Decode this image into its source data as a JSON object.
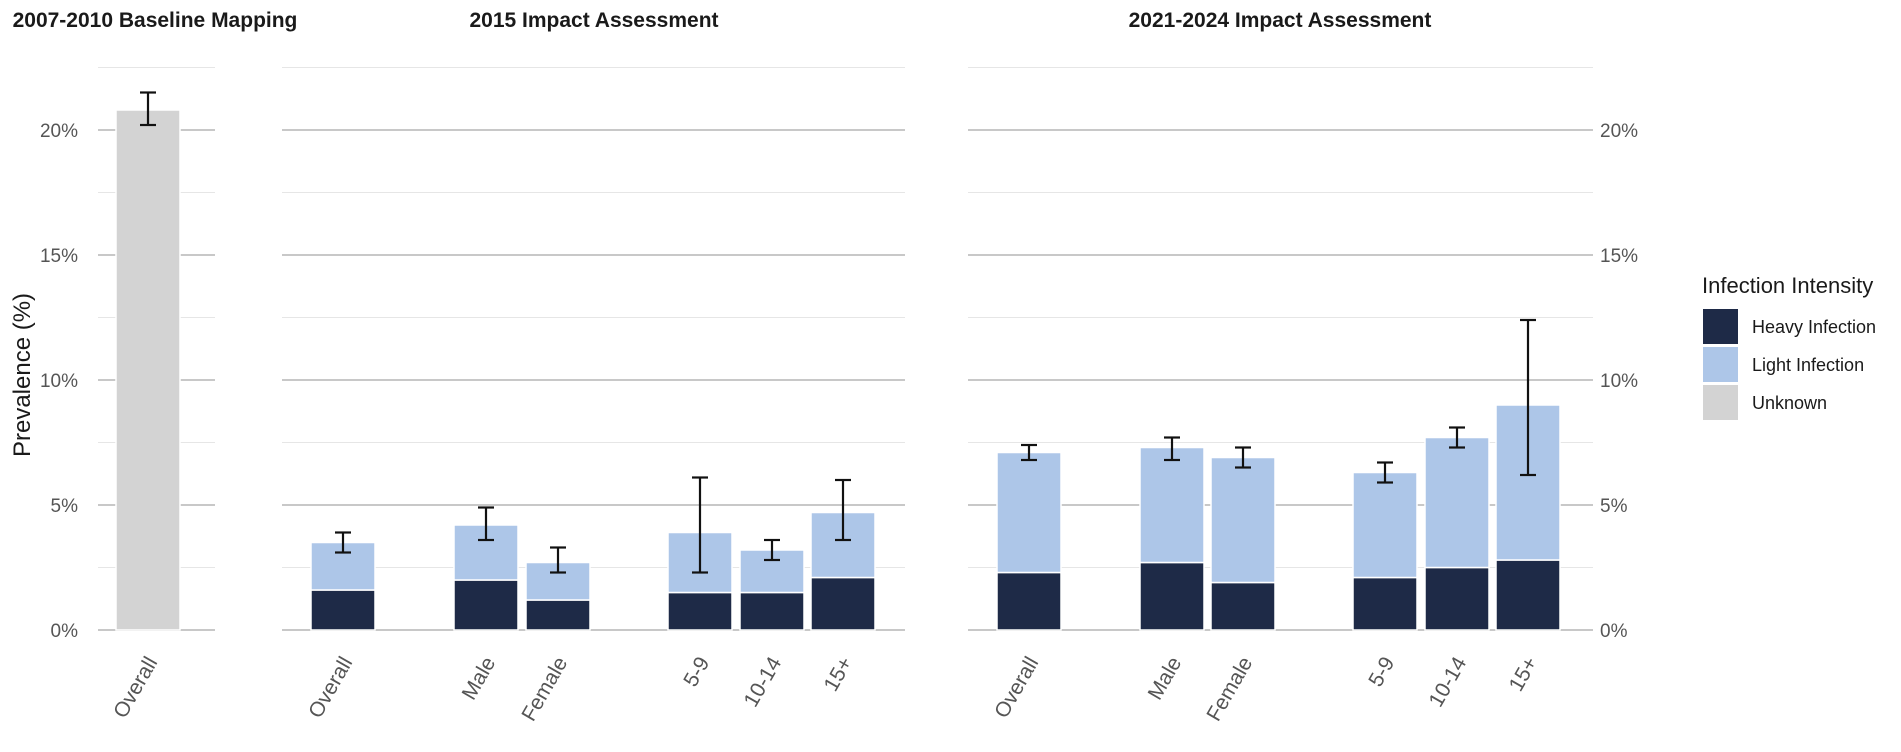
{
  "chart_data": {
    "type": "bar",
    "stacked": true,
    "ylabel": "Prevalence (%)",
    "ylim": [
      0,
      22.5
    ],
    "yticks": [
      0,
      5,
      10,
      15,
      20
    ],
    "ytick_labels": [
      "0%",
      "5%",
      "10%",
      "15%",
      "20%"
    ],
    "grid": true,
    "legend": {
      "title": "Infection Intensity",
      "position": "right",
      "entries": [
        {
          "name": "Heavy Infection",
          "color": "#1e2a47"
        },
        {
          "name": "Light Infection",
          "color": "#adc6e8"
        },
        {
          "name": "Unknown",
          "color": "#d3d3d3"
        }
      ]
    },
    "colors": {
      "heavy": "#1e2a47",
      "light": "#adc6e8",
      "unknown": "#d3d3d3",
      "error_bar": "#111111",
      "grid": "#c8c8c8"
    },
    "panels": [
      {
        "title": "2007-2010 Baseline Mapping",
        "bars": [
          {
            "category": "Overall",
            "unknown": 20.8,
            "ci": [
              20.2,
              21.5
            ]
          }
        ]
      },
      {
        "title": "2015 Impact Assessment",
        "bars": [
          {
            "category": "Overall",
            "heavy": 1.6,
            "light": 1.9,
            "ci": [
              3.1,
              3.9
            ]
          },
          {
            "category": "Male",
            "heavy": 2.0,
            "light": 2.2,
            "ci": [
              3.6,
              4.9
            ]
          },
          {
            "category": "Female",
            "heavy": 1.2,
            "light": 1.5,
            "ci": [
              2.3,
              3.3
            ]
          },
          {
            "category": "5-9",
            "heavy": 1.5,
            "light": 2.4,
            "ci": [
              2.3,
              6.1
            ]
          },
          {
            "category": "10-14",
            "heavy": 1.5,
            "light": 1.7,
            "ci": [
              2.8,
              3.6
            ]
          },
          {
            "category": "15+",
            "heavy": 2.1,
            "light": 2.6,
            "ci": [
              3.6,
              6.0
            ]
          }
        ]
      },
      {
        "title": "2021-2024 Impact Assessment",
        "bars": [
          {
            "category": "Overall",
            "heavy": 2.3,
            "light": 4.8,
            "ci": [
              6.8,
              7.4
            ]
          },
          {
            "category": "Male",
            "heavy": 2.7,
            "light": 4.6,
            "ci": [
              6.8,
              7.7
            ]
          },
          {
            "category": "Female",
            "heavy": 1.9,
            "light": 5.0,
            "ci": [
              6.5,
              7.3
            ]
          },
          {
            "category": "5-9",
            "heavy": 2.1,
            "light": 4.2,
            "ci": [
              5.9,
              6.7
            ]
          },
          {
            "category": "10-14",
            "heavy": 2.5,
            "light": 5.2,
            "ci": [
              7.3,
              8.1
            ]
          },
          {
            "category": "15+",
            "heavy": 2.8,
            "light": 6.2,
            "ci": [
              6.2,
              12.4
            ]
          }
        ]
      }
    ]
  }
}
